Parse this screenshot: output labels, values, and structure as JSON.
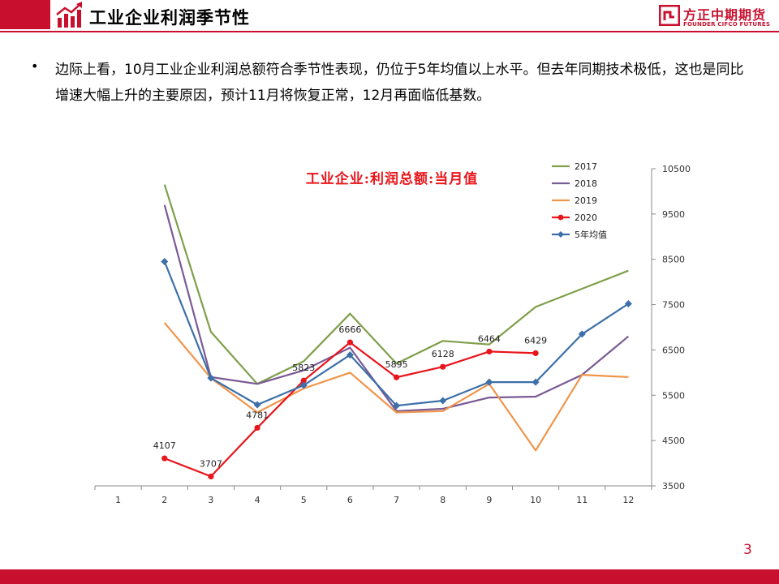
{
  "header": {
    "title": "工业企业利润季节性",
    "logo_cn": "方正中期期货",
    "logo_en": "FOUNDER CIFCO FUTURES",
    "accent_color": "#c8102e"
  },
  "bullet": {
    "text": "边际上看，10月工业企业利润总额符合季节性表现，仍位于5年均值以上水平。但去年同期技术极低，这也是同比增速大幅上升的主要原因，预计11月将恢复正常，12月再面临低基数。"
  },
  "page_number": "3",
  "chart_data": {
    "type": "line",
    "title": "工业企业:利润总额:当月值",
    "x": [
      1,
      2,
      3,
      4,
      5,
      6,
      7,
      8,
      9,
      10,
      11,
      12
    ],
    "ylim": [
      3500,
      10500
    ],
    "yticks": [
      3500,
      4500,
      5500,
      6500,
      7500,
      8500,
      9500,
      10500
    ],
    "y_axis_side": "right",
    "legend_position": "top-right",
    "grid": false,
    "series": [
      {
        "name": "2017",
        "color": "#7f9f4a",
        "marker": "none",
        "values": [
          null,
          10150,
          6900,
          5750,
          6250,
          7300,
          6200,
          6700,
          6620,
          7450,
          7850,
          8250
        ]
      },
      {
        "name": "2018",
        "color": "#7a5a95",
        "marker": "none",
        "values": [
          null,
          9700,
          5900,
          5750,
          6050,
          6550,
          5150,
          5200,
          5450,
          5470,
          5950,
          6800
        ]
      },
      {
        "name": "2019",
        "color": "#f0954a",
        "marker": "none",
        "values": [
          null,
          7100,
          5880,
          5120,
          5650,
          6000,
          5120,
          5150,
          5750,
          4280,
          5950,
          5900
        ]
      },
      {
        "name": "2020",
        "color": "#e8151b",
        "marker": "circle",
        "values": [
          null,
          4107,
          3707,
          4781,
          5823,
          6666,
          5895,
          6128,
          6464,
          6429,
          null,
          null
        ],
        "labels": [
          "",
          "4107",
          "3707",
          "4781",
          "5823",
          "6666",
          "5895",
          "6128",
          "6464",
          "6429",
          "",
          ""
        ]
      },
      {
        "name": "5年均值",
        "color": "#3d6fa8",
        "marker": "diamond",
        "values": [
          null,
          8450,
          5880,
          5290,
          5720,
          6390,
          5270,
          5380,
          5790,
          5790,
          6850,
          7520
        ]
      }
    ]
  }
}
